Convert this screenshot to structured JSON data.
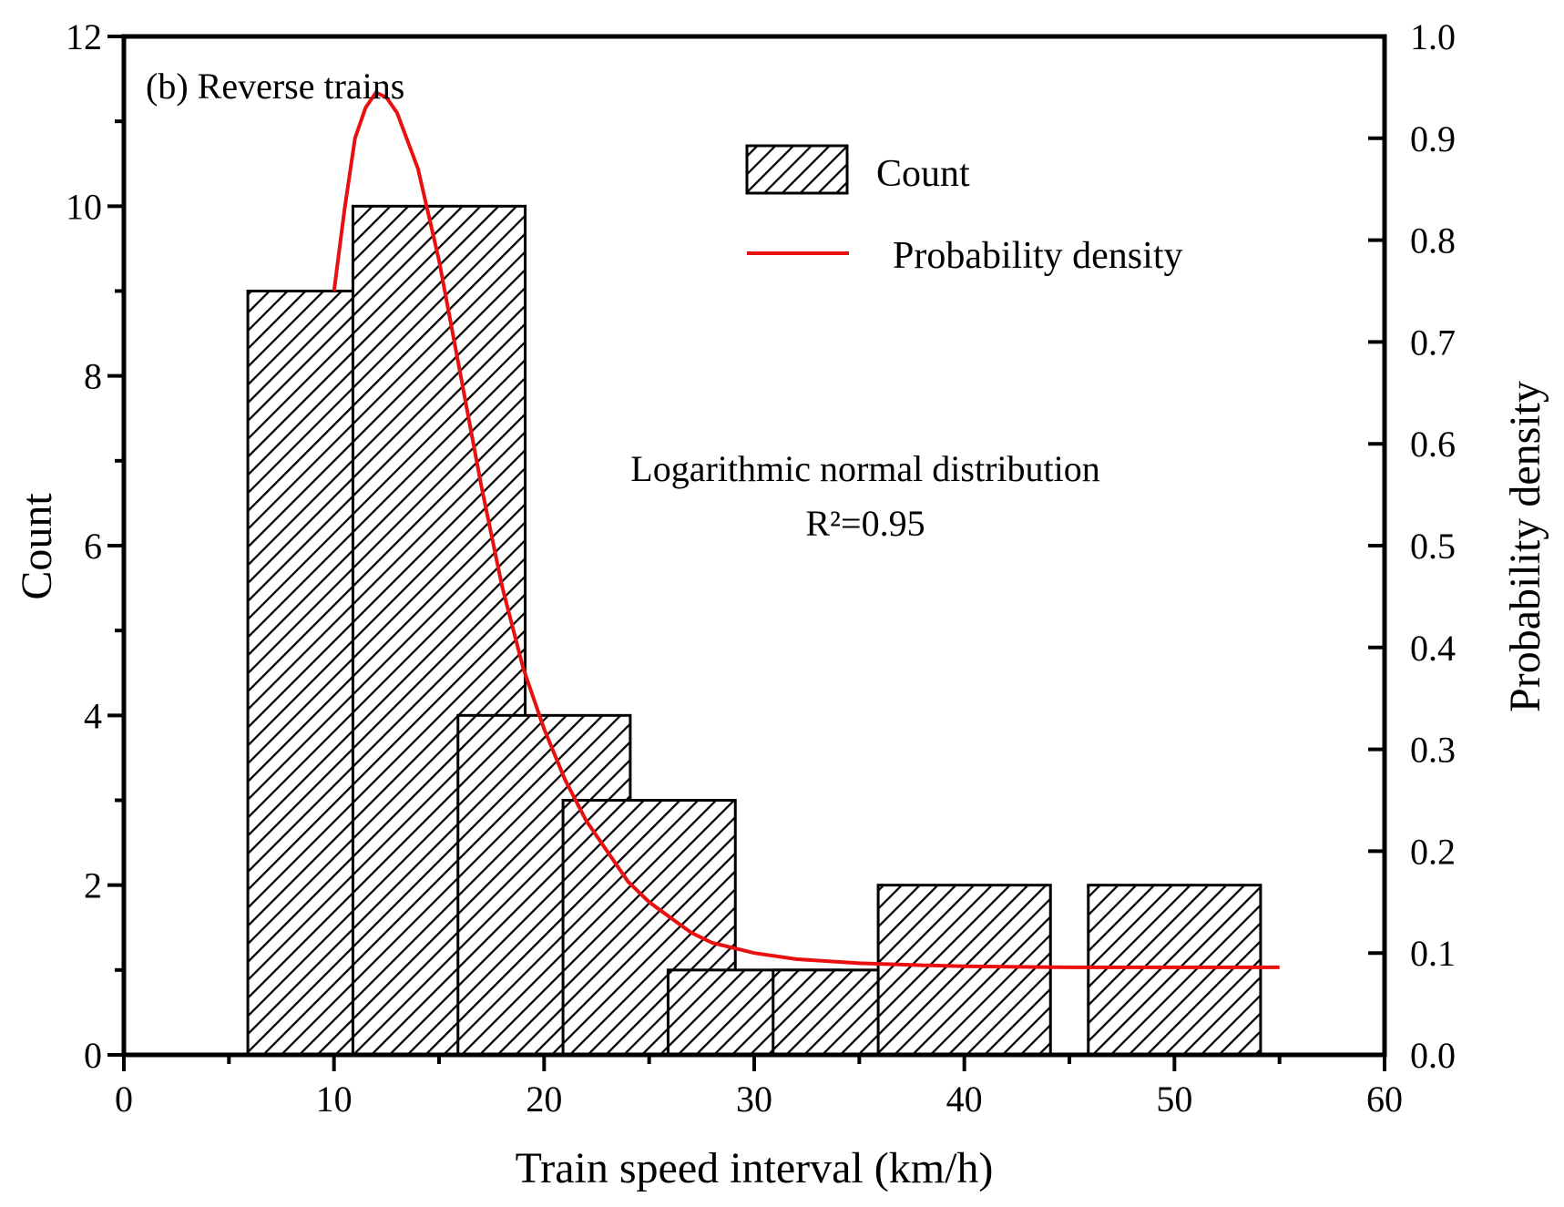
{
  "chart_data": {
    "type": "bar",
    "x_values": [
      10,
      15,
      20,
      25,
      30,
      35,
      40,
      50
    ],
    "series": [
      {
        "name": "Count",
        "type": "bar",
        "axis": "left",
        "values": [
          9,
          10,
          4,
          3,
          1,
          1,
          2,
          2
        ]
      },
      {
        "name": "Probability density",
        "type": "line",
        "axis": "right",
        "color": "#e81010",
        "points": [
          [
            10,
            0.75
          ],
          [
            10.5,
            0.83
          ],
          [
            11,
            0.9
          ],
          [
            11.5,
            0.93
          ],
          [
            12,
            0.945
          ],
          [
            12.5,
            0.94
          ],
          [
            13,
            0.925
          ],
          [
            14,
            0.87
          ],
          [
            15,
            0.78
          ],
          [
            16,
            0.67
          ],
          [
            17,
            0.56
          ],
          [
            18,
            0.46
          ],
          [
            19,
            0.38
          ],
          [
            20,
            0.32
          ],
          [
            21,
            0.27
          ],
          [
            22,
            0.23
          ],
          [
            23,
            0.2
          ],
          [
            24,
            0.17
          ],
          [
            25,
            0.15
          ],
          [
            26,
            0.135
          ],
          [
            27,
            0.12
          ],
          [
            28,
            0.11
          ],
          [
            30,
            0.1
          ],
          [
            32,
            0.094
          ],
          [
            35,
            0.09
          ],
          [
            38,
            0.088
          ],
          [
            40,
            0.087
          ],
          [
            45,
            0.086
          ],
          [
            50,
            0.086
          ],
          [
            55,
            0.086
          ]
        ]
      }
    ],
    "xlabel": "Train speed interval (km/h)",
    "ylabel": "Count",
    "y2label": "Probability density",
    "xlim": [
      0,
      60
    ],
    "ylim": [
      0,
      12
    ],
    "y2lim": [
      0,
      1.0
    ],
    "x_ticks": [
      "0",
      "10",
      "20",
      "30",
      "40",
      "50",
      "60"
    ],
    "y_ticks": [
      "0",
      "2",
      "4",
      "6",
      "8",
      "10",
      "12"
    ],
    "y2_ticks": [
      "0.0",
      "0.1",
      "0.2",
      "0.3",
      "0.4",
      "0.5",
      "0.6",
      "0.7",
      "0.8",
      "0.9",
      "1.0"
    ],
    "panel_label": "(b) Reverse trains",
    "annotation_line1": "Logarithmic normal distribution",
    "annotation_line2": "R²=0.95",
    "legend": {
      "position": "top-right",
      "entries": [
        "Count",
        "Probability density"
      ]
    },
    "bar_color": "#ffffff",
    "bar_hatch_color": "#000000",
    "grid": false
  }
}
